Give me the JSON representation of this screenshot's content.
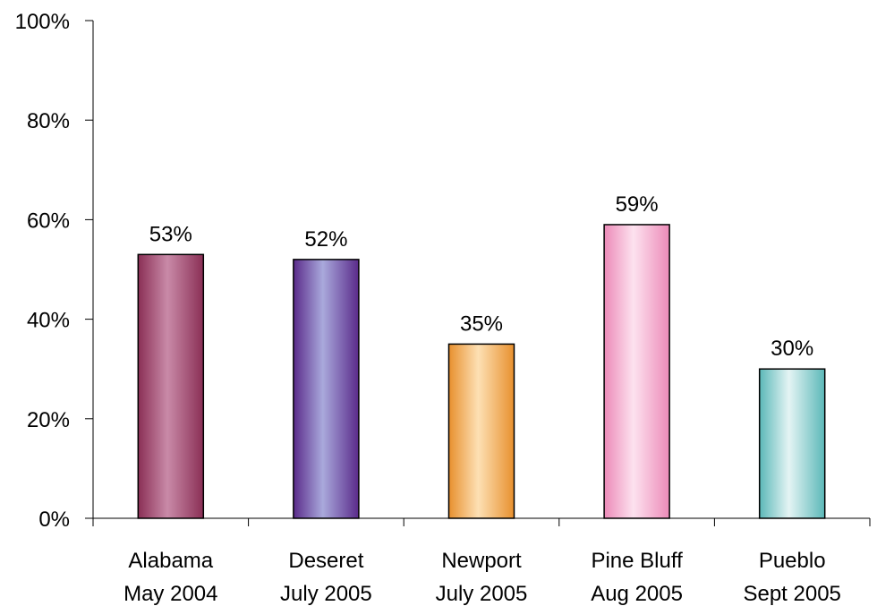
{
  "chart_data": {
    "type": "bar",
    "categories": [
      [
        "Alabama",
        "May 2004"
      ],
      [
        "Deseret",
        "July 2005"
      ],
      [
        "Newport",
        "July 2005"
      ],
      [
        "Pine Bluff",
        "Aug 2005"
      ],
      [
        "Pueblo",
        "Sept 2005"
      ]
    ],
    "values": [
      53,
      52,
      35,
      59,
      30
    ],
    "data_labels": [
      "53%",
      "52%",
      "35%",
      "59%",
      "30%"
    ],
    "y_ticks": [
      0,
      20,
      40,
      60,
      80,
      100
    ],
    "y_tick_labels": [
      "0%",
      "20%",
      "40%",
      "60%",
      "80%",
      "100%"
    ],
    "ylim": [
      0,
      100
    ],
    "grid": false,
    "legend": "none",
    "bar_colors": [
      {
        "dark": "#8a2f55",
        "light": "#c98aa8"
      },
      {
        "dark": "#5a2a8a",
        "light": "#a9a9dc"
      },
      {
        "dark": "#e8902e",
        "light": "#fde0b4"
      },
      {
        "dark": "#ec8ab8",
        "light": "#fde2ef"
      },
      {
        "dark": "#5bb8b8",
        "light": "#e4f4f4"
      }
    ]
  }
}
